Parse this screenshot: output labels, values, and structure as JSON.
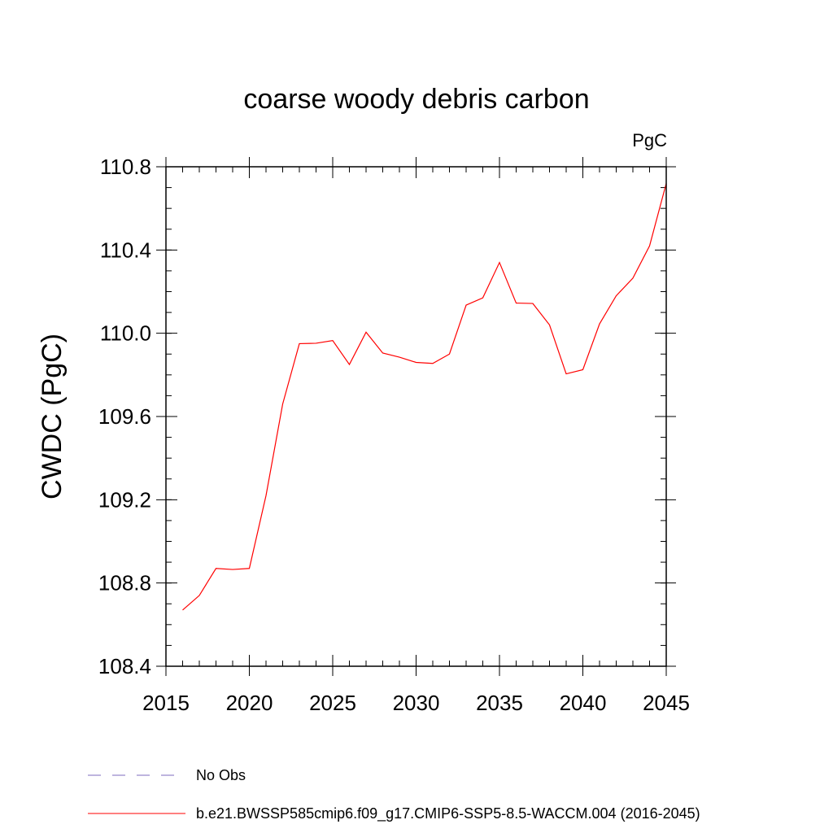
{
  "chart_data": {
    "type": "line",
    "title": "coarse woody debris carbon",
    "units_label": "PgC",
    "xlabel": "",
    "ylabel": "CWDC  (PgC)",
    "xlim": [
      2015,
      2045
    ],
    "ylim": [
      108.4,
      110.8
    ],
    "x_ticks": [
      2015,
      2020,
      2025,
      2030,
      2035,
      2040,
      2045
    ],
    "x_tick_labels": [
      "2015",
      "2020",
      "2025",
      "2030",
      "2035",
      "2040",
      "2045"
    ],
    "y_ticks": [
      108.4,
      108.8,
      109.2,
      109.6,
      110.0,
      110.4,
      110.8
    ],
    "y_tick_labels": [
      "108.4",
      "108.8",
      "109.2",
      "109.6",
      "110.0",
      "110.4",
      "110.8"
    ],
    "grid": false,
    "legend_position": "bottom",
    "series": [
      {
        "name": "b.e21.BWSSP585cmip6.f09_g17.CMIP6-SSP5-8.5-WACCM.004 (2016-2045)",
        "color": "#ff0000",
        "style": "solid",
        "x": [
          2016,
          2017,
          2018,
          2019,
          2020,
          2021,
          2022,
          2023,
          2024,
          2025,
          2026,
          2027,
          2028,
          2029,
          2030,
          2031,
          2032,
          2033,
          2034,
          2035,
          2036,
          2037,
          2038,
          2039,
          2040,
          2041,
          2042,
          2043,
          2044,
          2045
        ],
        "y": [
          108.67,
          108.74,
          108.87,
          108.865,
          108.87,
          109.22,
          109.66,
          109.95,
          109.952,
          109.965,
          109.85,
          110.005,
          109.905,
          109.885,
          109.86,
          109.855,
          109.9,
          110.135,
          110.17,
          110.34,
          110.145,
          110.143,
          110.04,
          109.805,
          109.825,
          110.045,
          110.18,
          110.265,
          110.42,
          110.72
        ]
      },
      {
        "name": "No Obs",
        "color": "#7d6bbf",
        "style": "dashed",
        "x": [],
        "y": []
      }
    ]
  }
}
